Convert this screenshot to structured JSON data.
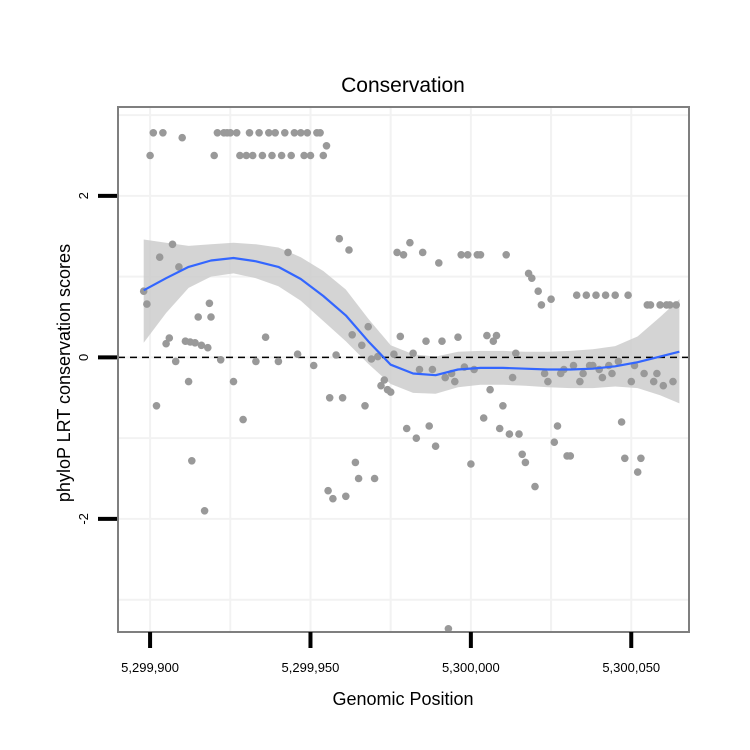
{
  "chart_data": {
    "type": "scatter",
    "title": "Conservation",
    "xlabel": "Genomic Position",
    "ylabel": "phyloP LRT conservation scores",
    "xlim": [
      5299890,
      5300068
    ],
    "ylim": [
      -3.4,
      3.1
    ],
    "x_ticks": [
      5299900,
      5299950,
      5300000,
      5300050
    ],
    "x_tick_labels": [
      "5,299,900",
      "5,299,950",
      "5,300,000",
      "5,300,050"
    ],
    "y_ticks": [
      2,
      0,
      -2
    ],
    "y_tick_labels": [
      "2",
      "0",
      "-2"
    ],
    "x_minor_grid": [
      5299925,
      5299975,
      5300025
    ],
    "y_minor_grid": [
      3,
      1,
      -1,
      -3
    ],
    "reference_line": 0,
    "colors": {
      "points": "#999999",
      "smooth_line": "#3366ff",
      "confidence_band": "#cccccc",
      "panel_border": "#7f7f7f",
      "grid": "#f2f2f2"
    },
    "points": [
      [
        5299898,
        0.82
      ],
      [
        5299899,
        0.66
      ],
      [
        5299900,
        2.5
      ],
      [
        5299901,
        2.78
      ],
      [
        5299902,
        -0.6
      ],
      [
        5299903,
        1.24
      ],
      [
        5299904,
        2.78
      ],
      [
        5299905,
        0.17
      ],
      [
        5299906,
        0.24
      ],
      [
        5299907,
        1.4
      ],
      [
        5299908,
        -0.05
      ],
      [
        5299909,
        1.12
      ],
      [
        5299910,
        2.72
      ],
      [
        5299911,
        0.2
      ],
      [
        5299912,
        -0.3
      ],
      [
        5299912.5,
        0.19
      ],
      [
        5299913,
        -1.28
      ],
      [
        5299914,
        0.18
      ],
      [
        5299915,
        0.5
      ],
      [
        5299916,
        0.15
      ],
      [
        5299917,
        -1.9
      ],
      [
        5299918,
        0.12
      ],
      [
        5299918.5,
        0.67
      ],
      [
        5299919,
        0.5
      ],
      [
        5299920,
        2.5
      ],
      [
        5299921,
        2.78
      ],
      [
        5299922,
        -0.03
      ],
      [
        5299923,
        2.78
      ],
      [
        5299924,
        2.78
      ],
      [
        5299925,
        2.78
      ],
      [
        5299926,
        -0.3
      ],
      [
        5299927,
        2.78
      ],
      [
        5299928,
        2.5
      ],
      [
        5299929,
        -0.77
      ],
      [
        5299930,
        2.5
      ],
      [
        5299931,
        2.78
      ],
      [
        5299932,
        2.5
      ],
      [
        5299933,
        -0.05
      ],
      [
        5299934,
        2.78
      ],
      [
        5299935,
        2.5
      ],
      [
        5299936,
        0.25
      ],
      [
        5299937,
        2.78
      ],
      [
        5299938,
        2.5
      ],
      [
        5299939,
        2.78
      ],
      [
        5299940,
        -0.05
      ],
      [
        5299941,
        2.5
      ],
      [
        5299942,
        2.78
      ],
      [
        5299943,
        1.3
      ],
      [
        5299944,
        2.5
      ],
      [
        5299945,
        2.78
      ],
      [
        5299946,
        0.04
      ],
      [
        5299947,
        2.78
      ],
      [
        5299948,
        2.5
      ],
      [
        5299949,
        2.78
      ],
      [
        5299950,
        2.5
      ],
      [
        5299951,
        -0.1
      ],
      [
        5299952,
        2.78
      ],
      [
        5299953,
        2.78
      ],
      [
        5299954,
        2.5
      ],
      [
        5299955,
        2.62
      ],
      [
        5299955.5,
        -1.65
      ],
      [
        5299956,
        -0.5
      ],
      [
        5299957,
        -1.75
      ],
      [
        5299958,
        0.03
      ],
      [
        5299959,
        1.47
      ],
      [
        5299960,
        -0.5
      ],
      [
        5299961,
        -1.72
      ],
      [
        5299962,
        1.33
      ],
      [
        5299963,
        0.28
      ],
      [
        5299964,
        -1.3
      ],
      [
        5299965,
        -1.5
      ],
      [
        5299966,
        0.15
      ],
      [
        5299967,
        -0.6
      ],
      [
        5299968,
        0.38
      ],
      [
        5299969,
        -0.02
      ],
      [
        5299970,
        -1.5
      ],
      [
        5299971,
        0.01
      ],
      [
        5299972,
        -0.35
      ],
      [
        5299973,
        -0.28
      ],
      [
        5299974,
        -0.4
      ],
      [
        5299975,
        -0.43
      ],
      [
        5299976,
        0.04
      ],
      [
        5299977,
        1.3
      ],
      [
        5299978,
        0.26
      ],
      [
        5299979,
        1.27
      ],
      [
        5299980,
        -0.88
      ],
      [
        5299981,
        1.42
      ],
      [
        5299982,
        0.05
      ],
      [
        5299983,
        -1.0
      ],
      [
        5299984,
        -0.15
      ],
      [
        5299985,
        1.3
      ],
      [
        5299986,
        0.2
      ],
      [
        5299987,
        -0.85
      ],
      [
        5299988,
        -0.15
      ],
      [
        5299989,
        -1.1
      ],
      [
        5299990,
        1.17
      ],
      [
        5299991,
        0.2
      ],
      [
        5299992,
        -0.25
      ],
      [
        5299993,
        -3.36
      ],
      [
        5299994,
        -0.2
      ],
      [
        5299995,
        -0.3
      ],
      [
        5299996,
        0.25
      ],
      [
        5299997,
        1.27
      ],
      [
        5299998,
        -0.12
      ],
      [
        5299999,
        1.27
      ],
      [
        5300000,
        -1.32
      ],
      [
        5300001,
        -0.15
      ],
      [
        5300002,
        1.27
      ],
      [
        5300003,
        1.27
      ],
      [
        5300004,
        -0.75
      ],
      [
        5300005,
        0.27
      ],
      [
        5300006,
        -0.4
      ],
      [
        5300007,
        0.2
      ],
      [
        5300008,
        0.27
      ],
      [
        5300009,
        -0.88
      ],
      [
        5300010,
        -0.6
      ],
      [
        5300011,
        1.27
      ],
      [
        5300012,
        -0.95
      ],
      [
        5300013,
        -0.25
      ],
      [
        5300014,
        0.05
      ],
      [
        5300015,
        -0.95
      ],
      [
        5300016,
        -1.2
      ],
      [
        5300017,
        -1.3
      ],
      [
        5300018,
        1.04
      ],
      [
        5300019,
        0.98
      ],
      [
        5300020,
        -1.6
      ],
      [
        5300021,
        0.82
      ],
      [
        5300022,
        0.65
      ],
      [
        5300023,
        -0.2
      ],
      [
        5300024,
        -0.3
      ],
      [
        5300025,
        0.72
      ],
      [
        5300026,
        -1.05
      ],
      [
        5300027,
        -0.85
      ],
      [
        5300028,
        -0.2
      ],
      [
        5300029,
        -0.15
      ],
      [
        5300030,
        -1.22
      ],
      [
        5300031,
        -1.22
      ],
      [
        5300032,
        -0.1
      ],
      [
        5300033,
        0.77
      ],
      [
        5300034,
        -0.3
      ],
      [
        5300035,
        -0.2
      ],
      [
        5300036,
        0.77
      ],
      [
        5300037,
        -0.1
      ],
      [
        5300038,
        -0.1
      ],
      [
        5300039,
        0.77
      ],
      [
        5300040,
        -0.15
      ],
      [
        5300041,
        -0.25
      ],
      [
        5300042,
        0.77
      ],
      [
        5300043,
        -0.1
      ],
      [
        5300044,
        -0.2
      ],
      [
        5300045,
        0.77
      ],
      [
        5300046,
        -0.05
      ],
      [
        5300047,
        -0.8
      ],
      [
        5300048,
        -1.25
      ],
      [
        5300049,
        0.77
      ],
      [
        5300050,
        -0.3
      ],
      [
        5300051,
        -0.1
      ],
      [
        5300052,
        -1.42
      ],
      [
        5300053,
        -1.25
      ],
      [
        5300054,
        -0.2
      ],
      [
        5300055,
        0.65
      ],
      [
        5300056,
        0.65
      ],
      [
        5300057,
        -0.3
      ],
      [
        5300058,
        -0.2
      ],
      [
        5300059,
        0.65
      ],
      [
        5300060,
        -0.35
      ],
      [
        5300061,
        0.65
      ],
      [
        5300062,
        0.65
      ],
      [
        5300063,
        -0.3
      ],
      [
        5300064,
        0.65
      ]
    ],
    "smooth": {
      "x": [
        5299898,
        5299905,
        5299912,
        5299919,
        5299926,
        5299933,
        5299940,
        5299947,
        5299954,
        5299961,
        5299968,
        5299975,
        5299982,
        5299989,
        5299996,
        5300003,
        5300010,
        5300017,
        5300024,
        5300031,
        5300038,
        5300045,
        5300052,
        5300059,
        5300065
      ],
      "y": [
        0.83,
        0.98,
        1.12,
        1.2,
        1.23,
        1.19,
        1.12,
        0.97,
        0.76,
        0.52,
        0.2,
        -0.09,
        -0.2,
        -0.22,
        -0.15,
        -0.13,
        -0.13,
        -0.14,
        -0.15,
        -0.15,
        -0.14,
        -0.11,
        -0.06,
        0.01,
        0.07
      ],
      "lower": [
        0.18,
        0.55,
        0.86,
        1.0,
        1.04,
        0.98,
        0.88,
        0.7,
        0.45,
        0.2,
        -0.08,
        -0.33,
        -0.44,
        -0.45,
        -0.37,
        -0.34,
        -0.34,
        -0.35,
        -0.37,
        -0.38,
        -0.38,
        -0.36,
        -0.38,
        -0.47,
        -0.57
      ],
      "upper": [
        1.46,
        1.42,
        1.38,
        1.4,
        1.42,
        1.4,
        1.36,
        1.24,
        1.07,
        0.84,
        0.48,
        0.15,
        0.04,
        0.01,
        0.07,
        0.08,
        0.08,
        0.07,
        0.07,
        0.08,
        0.1,
        0.14,
        0.26,
        0.5,
        0.72
      ]
    }
  }
}
